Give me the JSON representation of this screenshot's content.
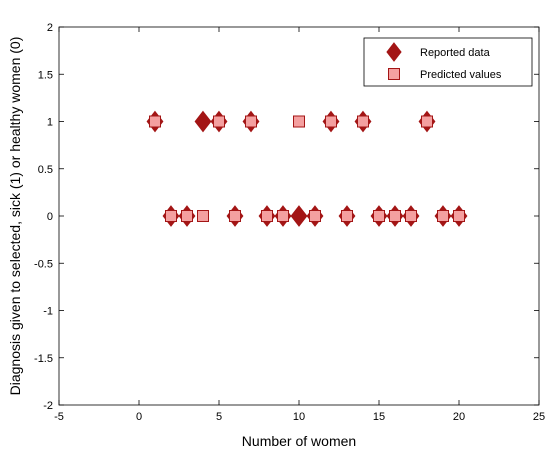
{
  "chart_data": {
    "type": "scatter",
    "xlabel": "Number of women",
    "ylabel": "Diagnosis given to selected, sick (1) or healthy women (0)",
    "xlim": [
      -5,
      25
    ],
    "ylim": [
      -2,
      2
    ],
    "xticks": [
      -5,
      0,
      5,
      10,
      15,
      20,
      25
    ],
    "yticks": [
      -2,
      -1.5,
      -1,
      -0.5,
      0,
      0.5,
      1,
      1.5,
      2
    ],
    "xtick_labels": [
      "-5",
      "0",
      "5",
      "10",
      "15",
      "20",
      "25"
    ],
    "ytick_labels": [
      "-2",
      "-1.5",
      "-1",
      "-0.5",
      "0",
      "0.5",
      "1",
      "1.5",
      "2"
    ],
    "grid": false,
    "legend_position": "top-right",
    "series": [
      {
        "name": "Reported data",
        "marker": "diamond",
        "color": "#a31515",
        "x": [
          1,
          2,
          3,
          4,
          5,
          6,
          7,
          8,
          9,
          10,
          11,
          12,
          13,
          14,
          15,
          16,
          17,
          18,
          19,
          20
        ],
        "y": [
          1,
          0,
          0,
          1,
          1,
          0,
          1,
          0,
          0,
          0,
          0,
          1,
          0,
          1,
          0,
          0,
          0,
          1,
          0,
          0
        ]
      },
      {
        "name": "Predicted values",
        "marker": "square",
        "color": "#f4a0a0",
        "edge_color": "#a31515",
        "x": [
          1,
          2,
          3,
          4,
          5,
          6,
          7,
          8,
          9,
          10,
          11,
          12,
          13,
          14,
          15,
          16,
          17,
          18,
          19,
          20
        ],
        "y": [
          1,
          0,
          0,
          0,
          1,
          0,
          1,
          0,
          0,
          1,
          0,
          1,
          0,
          1,
          0,
          0,
          0,
          1,
          0,
          0
        ]
      }
    ]
  }
}
